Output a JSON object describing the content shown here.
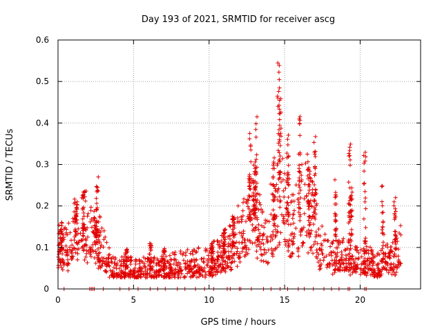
{
  "chart_data": {
    "type": "scatter",
    "title": "Day 193 of 2021, SRMTID for receiver ascg",
    "xlabel": "GPS time / hours",
    "ylabel": "SRMTID / TECUs",
    "xlim": [
      0,
      24
    ],
    "ylim": [
      0,
      0.6
    ],
    "xticks": [
      0,
      5,
      10,
      15,
      20
    ],
    "xtick_labels": [
      "0",
      "5",
      "10",
      "15",
      "20"
    ],
    "yticks": [
      0,
      0.1,
      0.2,
      0.3,
      0.4,
      0.5,
      0.6
    ],
    "ytick_labels": [
      "0",
      "0.1",
      "0.2",
      "0.3",
      "0.4",
      "0.5",
      "0.6"
    ],
    "grid": true,
    "marker": "+",
    "color": "#e00000",
    "trend": [
      [
        0.0,
        0.085
      ],
      [
        0.3,
        0.095
      ],
      [
        0.6,
        0.09
      ],
      [
        1.0,
        0.12
      ],
      [
        1.4,
        0.14
      ],
      [
        1.8,
        0.13
      ],
      [
        2.2,
        0.12
      ],
      [
        2.6,
        0.1
      ],
      [
        3.0,
        0.09
      ],
      [
        3.3,
        0.06
      ],
      [
        3.7,
        0.045
      ],
      [
        4.5,
        0.05
      ],
      [
        5.2,
        0.04
      ],
      [
        6.0,
        0.045
      ],
      [
        7.0,
        0.045
      ],
      [
        8.0,
        0.05
      ],
      [
        9.0,
        0.055
      ],
      [
        9.6,
        0.06
      ],
      [
        10.2,
        0.065
      ],
      [
        10.8,
        0.075
      ],
      [
        11.5,
        0.1
      ],
      [
        12.2,
        0.13
      ],
      [
        12.6,
        0.15
      ],
      [
        13.0,
        0.18
      ],
      [
        13.4,
        0.14
      ],
      [
        13.8,
        0.12
      ],
      [
        14.3,
        0.15
      ],
      [
        14.8,
        0.2
      ],
      [
        15.2,
        0.16
      ],
      [
        15.6,
        0.14
      ],
      [
        16.0,
        0.18
      ],
      [
        16.4,
        0.2
      ],
      [
        16.8,
        0.17
      ],
      [
        17.3,
        0.1
      ],
      [
        17.8,
        0.08
      ],
      [
        18.5,
        0.075
      ],
      [
        19.2,
        0.07
      ],
      [
        19.8,
        0.065
      ],
      [
        20.5,
        0.06
      ],
      [
        21.2,
        0.06
      ],
      [
        21.8,
        0.065
      ],
      [
        22.3,
        0.07
      ],
      [
        22.7,
        0.085
      ]
    ],
    "peaks": [
      [
        0.2,
        0.16
      ],
      [
        1.2,
        0.21
      ],
      [
        1.7,
        0.24
      ],
      [
        2.5,
        0.17
      ],
      [
        2.6,
        0.27
      ],
      [
        4.5,
        0.1
      ],
      [
        6.1,
        0.11
      ],
      [
        7.0,
        0.1
      ],
      [
        10.2,
        0.11
      ],
      [
        11.0,
        0.15
      ],
      [
        11.6,
        0.18
      ],
      [
        12.7,
        0.39
      ],
      [
        13.1,
        0.42
      ],
      [
        13.0,
        0.3
      ],
      [
        14.3,
        0.33
      ],
      [
        14.6,
        0.55
      ],
      [
        14.7,
        0.5
      ],
      [
        15.2,
        0.38
      ],
      [
        16.0,
        0.42
      ],
      [
        16.6,
        0.31
      ],
      [
        17.0,
        0.37
      ],
      [
        18.4,
        0.27
      ],
      [
        19.3,
        0.35
      ],
      [
        19.4,
        0.25
      ],
      [
        20.3,
        0.34
      ],
      [
        21.5,
        0.25
      ],
      [
        22.3,
        0.22
      ]
    ],
    "zero_points": [
      0.4,
      2.1,
      2.2,
      2.3,
      2.4,
      3.0,
      4.1,
      4.7,
      5.3,
      6.1,
      6.6,
      7.1,
      7.9,
      8.4,
      9.1,
      9.7,
      10.3,
      11.2,
      11.4,
      12.0,
      12.1,
      12.8,
      13.6,
      14.1,
      14.7,
      15.2,
      15.9,
      16.3,
      16.9,
      17.6,
      18.1,
      18.6,
      19.2,
      19.3,
      20.3,
      20.4
    ]
  }
}
